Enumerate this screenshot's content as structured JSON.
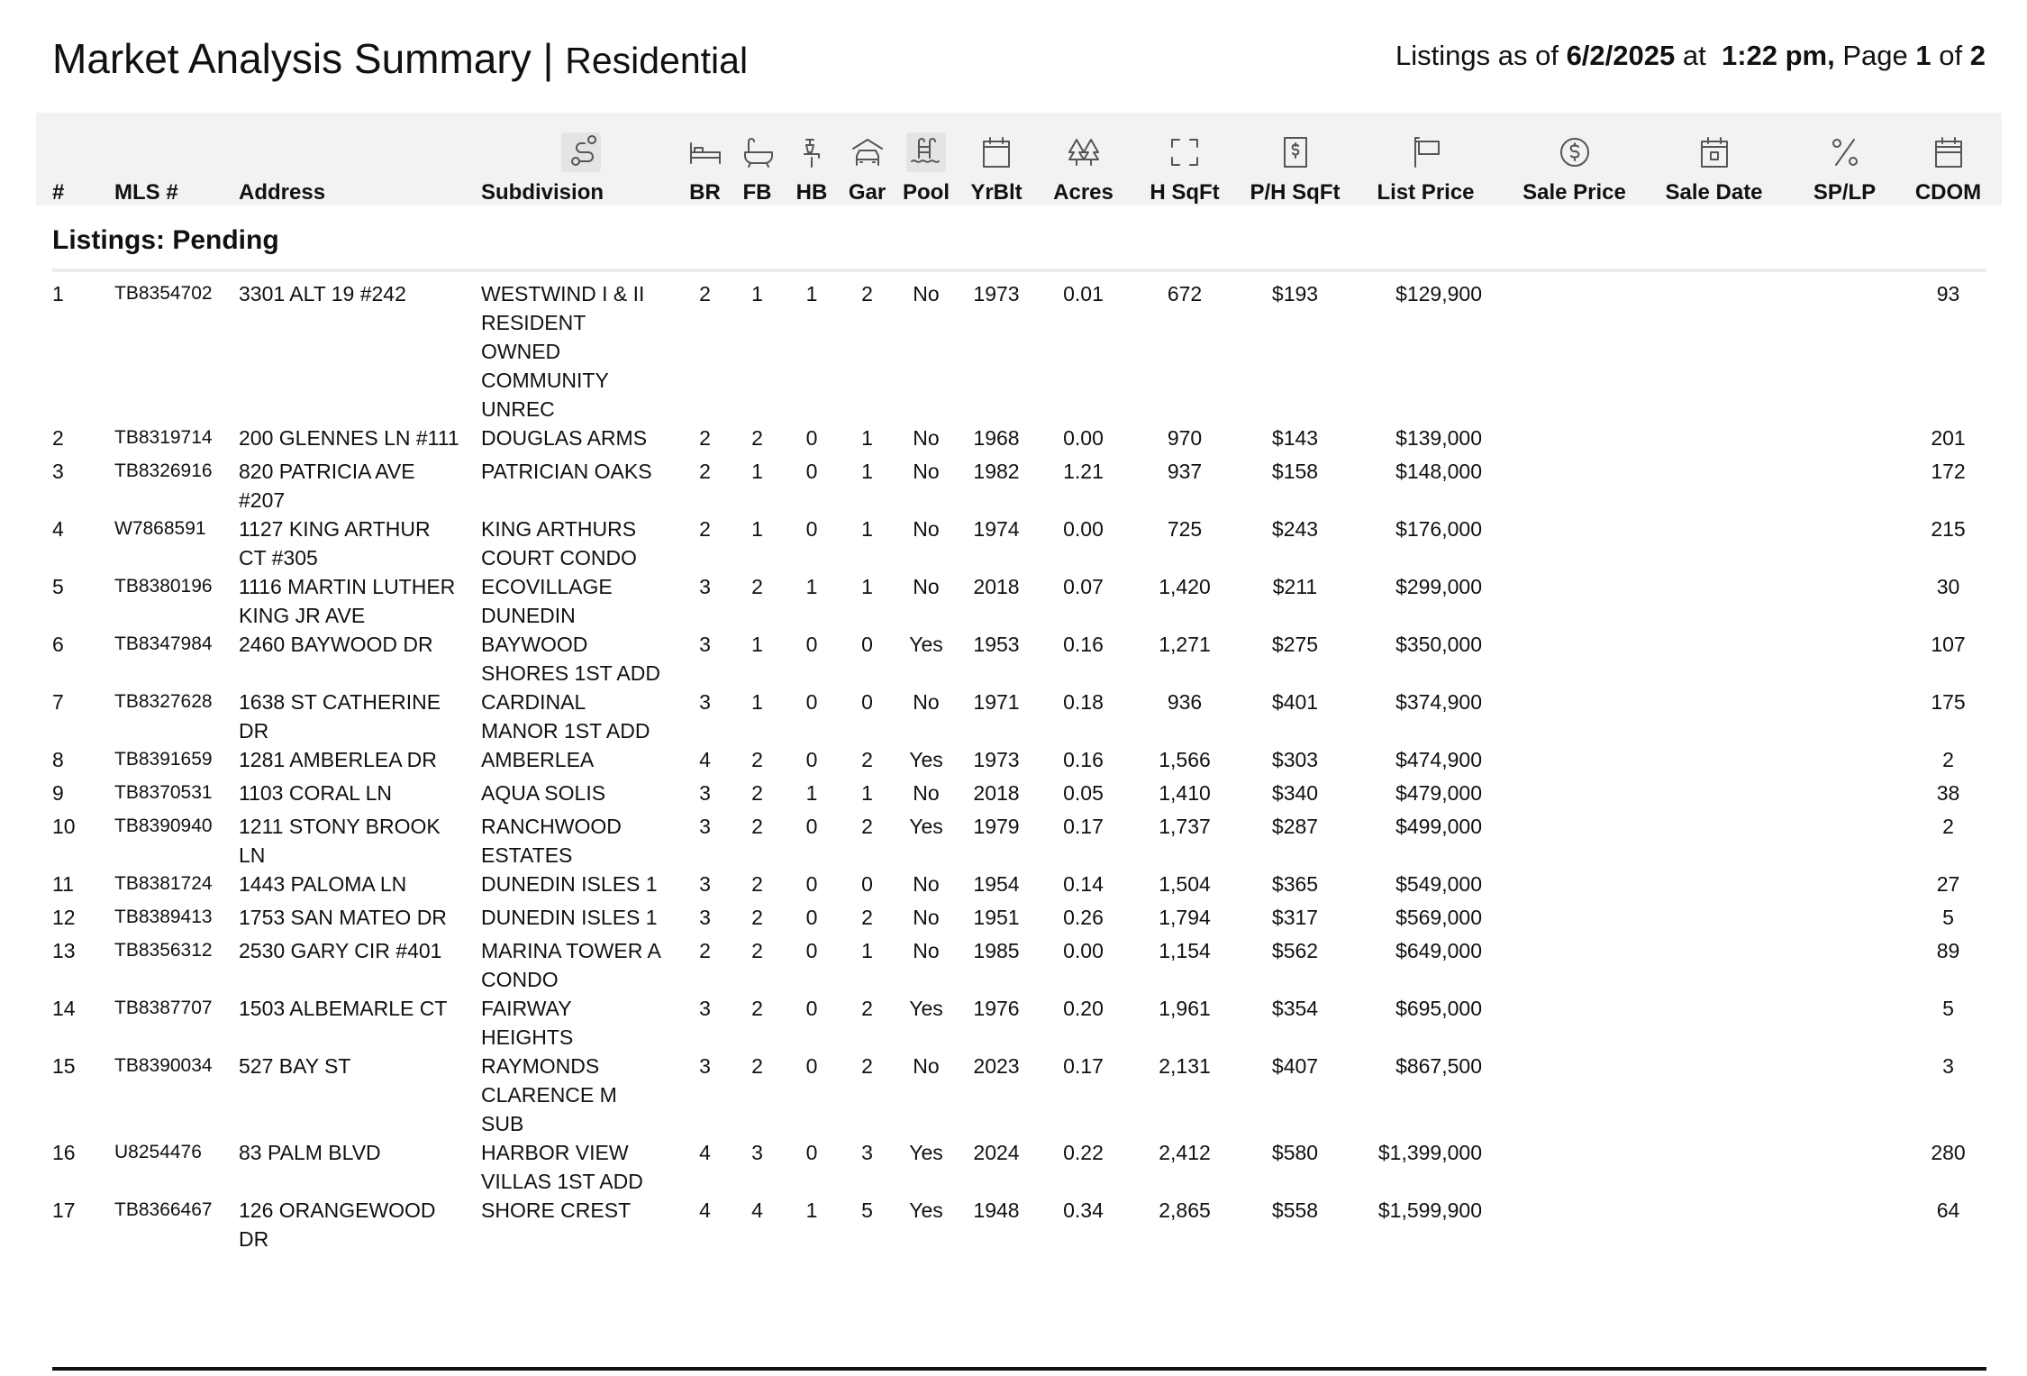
{
  "header": {
    "title": "Market Analysis Summary",
    "separator": "|",
    "subtitle": "Residential",
    "meta": {
      "prefix": "Listings as of",
      "date": "6/2/2025",
      "at": "at",
      "time": "1:22 pm,",
      "page_label": "Page",
      "page": "1",
      "of": "of",
      "pages": "2"
    }
  },
  "table": {
    "columns": [
      "#",
      "MLS #",
      "Address",
      "Subdivision",
      "BR",
      "FB",
      "HB",
      "Gar",
      "Pool",
      "YrBlt",
      "Acres",
      "H SqFt",
      "P/H SqFt",
      "List Price",
      "Sale Price",
      "Sale Date",
      "SP/LP",
      "CDOM"
    ],
    "section": "Listings: Pending",
    "rows": [
      [
        "1",
        "TB8354702",
        "3301 ALT 19 #242",
        "WESTWIND I & II RESIDENT OWNED COMMUNITY UNREC",
        "2",
        "1",
        "1",
        "2",
        "No",
        "1973",
        "0.01",
        "672",
        "$193",
        "$129,900",
        "93"
      ],
      [
        "2",
        "TB8319714",
        "200 GLENNES LN #111",
        "DOUGLAS ARMS",
        "2",
        "2",
        "0",
        "1",
        "No",
        "1968",
        "0.00",
        "970",
        "$143",
        "$139,000",
        "201"
      ],
      [
        "3",
        "TB8326916",
        "820 PATRICIA AVE #207",
        "PATRICIAN OAKS",
        "2",
        "1",
        "0",
        "1",
        "No",
        "1982",
        "1.21",
        "937",
        "$158",
        "$148,000",
        "172"
      ],
      [
        "4",
        "W7868591",
        "1127 KING ARTHUR CT #305",
        "KING ARTHURS COURT CONDO",
        "2",
        "1",
        "0",
        "1",
        "No",
        "1974",
        "0.00",
        "725",
        "$243",
        "$176,000",
        "215"
      ],
      [
        "5",
        "TB8380196",
        "1116 MARTIN LUTHER KING JR AVE",
        "ECOVILLAGE DUNEDIN",
        "3",
        "2",
        "1",
        "1",
        "No",
        "2018",
        "0.07",
        "1,420",
        "$211",
        "$299,000",
        "30"
      ],
      [
        "6",
        "TB8347984",
        "2460 BAYWOOD DR",
        "BAYWOOD SHORES 1ST ADD",
        "3",
        "1",
        "0",
        "0",
        "Yes",
        "1953",
        "0.16",
        "1,271",
        "$275",
        "$350,000",
        "107"
      ],
      [
        "7",
        "TB8327628",
        "1638 ST CATHERINE DR",
        "CARDINAL MANOR 1ST ADD",
        "3",
        "1",
        "0",
        "0",
        "No",
        "1971",
        "0.18",
        "936",
        "$401",
        "$374,900",
        "175"
      ],
      [
        "8",
        "TB8391659",
        "1281 AMBERLEA DR",
        "AMBERLEA",
        "4",
        "2",
        "0",
        "2",
        "Yes",
        "1973",
        "0.16",
        "1,566",
        "$303",
        "$474,900",
        "2"
      ],
      [
        "9",
        "TB8370531",
        "1103 CORAL LN",
        "AQUA SOLIS",
        "3",
        "2",
        "1",
        "1",
        "No",
        "2018",
        "0.05",
        "1,410",
        "$340",
        "$479,000",
        "38"
      ],
      [
        "10",
        "TB8390940",
        "1211 STONY BROOK LN",
        "RANCHWOOD ESTATES",
        "3",
        "2",
        "0",
        "2",
        "Yes",
        "1979",
        "0.17",
        "1,737",
        "$287",
        "$499,000",
        "2"
      ],
      [
        "11",
        "TB8381724",
        "1443 PALOMA LN",
        "DUNEDIN ISLES 1",
        "3",
        "2",
        "0",
        "0",
        "No",
        "1954",
        "0.14",
        "1,504",
        "$365",
        "$549,000",
        "27"
      ],
      [
        "12",
        "TB8389413",
        "1753 SAN MATEO DR",
        "DUNEDIN ISLES 1",
        "3",
        "2",
        "0",
        "2",
        "No",
        "1951",
        "0.26",
        "1,794",
        "$317",
        "$569,000",
        "5"
      ],
      [
        "13",
        "TB8356312",
        "2530 GARY CIR #401",
        "MARINA TOWER A CONDO",
        "2",
        "2",
        "0",
        "1",
        "No",
        "1985",
        "0.00",
        "1,154",
        "$562",
        "$649,000",
        "89"
      ],
      [
        "14",
        "TB8387707",
        "1503 ALBEMARLE CT",
        "FAIRWAY HEIGHTS",
        "3",
        "2",
        "0",
        "2",
        "Yes",
        "1976",
        "0.20",
        "1,961",
        "$354",
        "$695,000",
        "5"
      ],
      [
        "15",
        "TB8390034",
        "527 BAY ST",
        "RAYMONDS CLARENCE M SUB",
        "3",
        "2",
        "0",
        "2",
        "No",
        "2023",
        "0.17",
        "2,131",
        "$407",
        "$867,500",
        "3"
      ],
      [
        "16",
        "U8254476",
        "83 PALM BLVD",
        "HARBOR VIEW VILLAS 1ST ADD",
        "4",
        "3",
        "0",
        "3",
        "Yes",
        "2024",
        "0.22",
        "2,412",
        "$580",
        "$1,399,000",
        "280"
      ],
      [
        "17",
        "TB8366467",
        "126 ORANGEWOOD DR",
        "SHORE CREST",
        "4",
        "4",
        "1",
        "5",
        "Yes",
        "1948",
        "0.34",
        "2,865",
        "$558",
        "$1,599,900",
        "64"
      ]
    ]
  }
}
